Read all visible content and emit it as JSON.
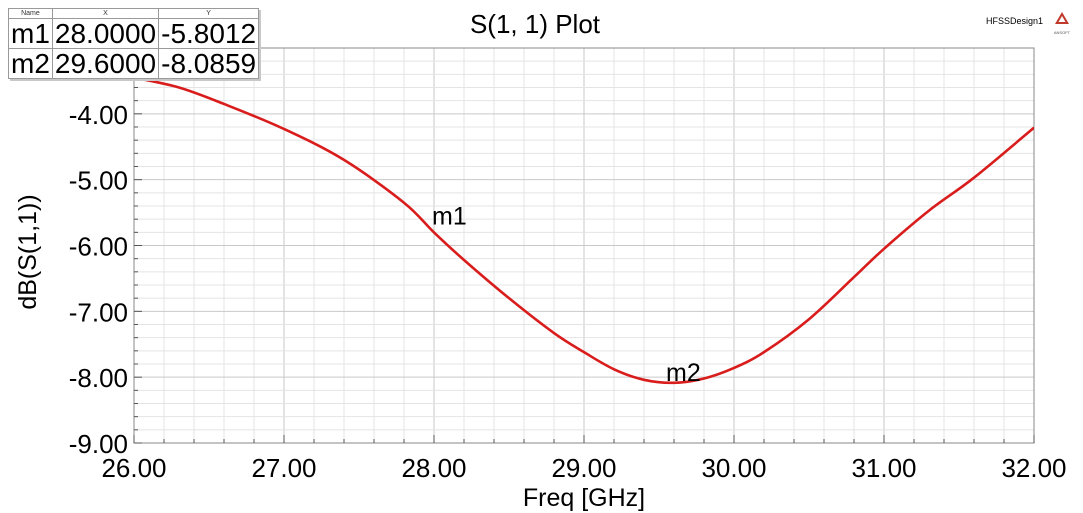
{
  "app": {
    "design_name": "HFSSDesign1",
    "logo_text": "ANSOFT"
  },
  "marker_table": {
    "headers": [
      "Name",
      "X",
      "Y"
    ],
    "rows": [
      {
        "name": "m1",
        "x": "28.0000",
        "y": "-5.8012"
      },
      {
        "name": "m2",
        "x": "29.6000",
        "y": "-8.0859"
      }
    ]
  },
  "chart_data": {
    "type": "line",
    "title": "S(1, 1) Plot",
    "xlabel": "Freq [GHz]",
    "ylabel": "dB(S(1,1))",
    "xlim": [
      26.0,
      32.0
    ],
    "ylim": [
      -9.0,
      -3.0
    ],
    "x_ticks": [
      26,
      27,
      28,
      29,
      30,
      31,
      32
    ],
    "x_tick_labels": [
      "26.00",
      "27.00",
      "28.00",
      "29.00",
      "30.00",
      "31.00",
      "32.00"
    ],
    "y_ticks": [
      -9,
      -8,
      -7,
      -6,
      -5,
      -4
    ],
    "y_tick_labels": [
      "-9.00",
      "-8.00",
      "-7.00",
      "-6.00",
      "-5.00",
      "-4.00"
    ],
    "grid": true,
    "line_color": "#d91c1c",
    "series": [
      {
        "x": [
          26.0,
          26.3,
          26.6,
          27.0,
          27.4,
          27.8,
          28.0,
          28.2,
          28.5,
          28.8,
          29.0,
          29.2,
          29.4,
          29.6,
          29.8,
          30.0,
          30.2,
          30.5,
          30.8,
          31.0,
          31.3,
          31.6,
          32.0
        ],
        "y": [
          -3.45,
          -3.6,
          -3.85,
          -4.23,
          -4.7,
          -5.35,
          -5.8012,
          -6.22,
          -6.8,
          -7.33,
          -7.62,
          -7.88,
          -8.04,
          -8.0859,
          -8.02,
          -7.86,
          -7.62,
          -7.12,
          -6.48,
          -6.05,
          -5.47,
          -4.97,
          -4.21
        ]
      }
    ],
    "markers": [
      {
        "label": "m1",
        "x": 28.0,
        "y": -5.8012
      },
      {
        "label": "m2",
        "x": 29.6,
        "y": -8.0859
      }
    ]
  }
}
